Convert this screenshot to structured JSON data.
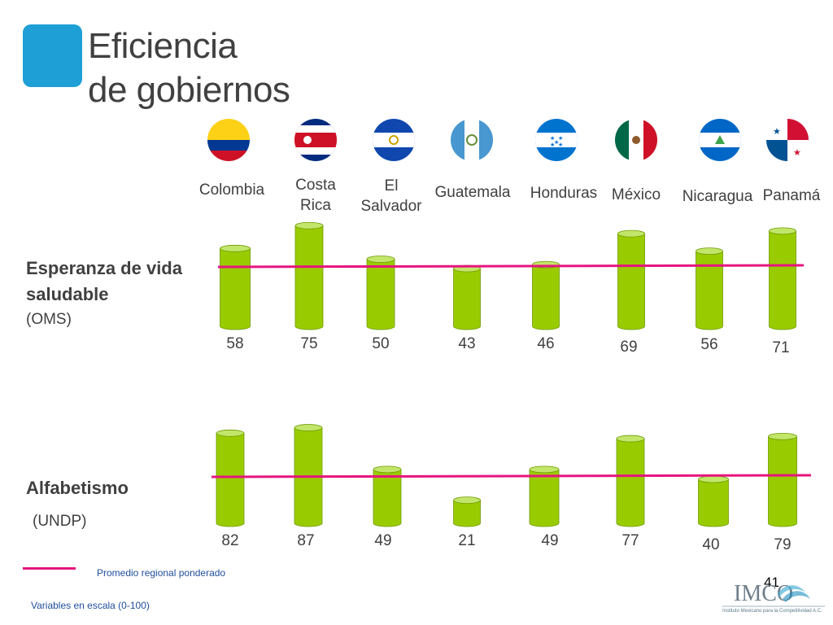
{
  "title": {
    "line1": "Eficiencia",
    "line2": "de gobiernos"
  },
  "colors": {
    "accent": "#1ea0d6",
    "bar_fill": "#99cc00",
    "bar_top": "#c2e66a",
    "bar_edge": "#6f9a00",
    "average_line": "#e6157f",
    "footnote_text": "#1f4e9c"
  },
  "countries": [
    {
      "name": "Colombia",
      "flag": "colombia-flag-icon"
    },
    {
      "name": "Costa\nRica",
      "flag": "costa-rica-flag-icon"
    },
    {
      "name": "El\nSalvador",
      "flag": "el-salvador-flag-icon"
    },
    {
      "name": "Guatemala",
      "flag": "guatemala-flag-icon"
    },
    {
      "name": "Honduras",
      "flag": "honduras-flag-icon"
    },
    {
      "name": "México",
      "flag": "mexico-flag-icon"
    },
    {
      "name": "Nicaragua",
      "flag": "nicaragua-flag-icon"
    },
    {
      "name": "Panamá",
      "flag": "panama-flag-icon"
    }
  ],
  "rows": {
    "life": {
      "label_line1": "Esperanza de vida",
      "label_line2": "saludable",
      "source": "(OMS)"
    },
    "literacy": {
      "label": "Alfabetismo",
      "source": "(UNDP)"
    }
  },
  "chart_data": [
    {
      "type": "bar",
      "categories": [
        "Colombia",
        "Costa Rica",
        "El Salvador",
        "Guatemala",
        "Honduras",
        "México",
        "Nicaragua",
        "Panamá"
      ],
      "values": [
        58,
        75,
        50,
        43,
        46,
        69,
        56,
        71
      ],
      "ylim": [
        0,
        100
      ]
    },
    {
      "type": "bar",
      "categories": [
        "Colombia",
        "Costa Rica",
        "El Salvador",
        "Guatemala",
        "Honduras",
        "México",
        "Nicaragua",
        "Panamá"
      ],
      "values": [
        82,
        87,
        49,
        21,
        49,
        77,
        40,
        79
      ],
      "ylim": [
        0,
        100
      ]
    }
  ],
  "legend": {
    "average_label": "Promedio regional ponderado"
  },
  "footnote": "Variables en escala (0-100)",
  "page_number": "41",
  "logo": {
    "text": "IMCO",
    "subtitle": "Instituto Mexicano para la Competitividad A.C."
  }
}
